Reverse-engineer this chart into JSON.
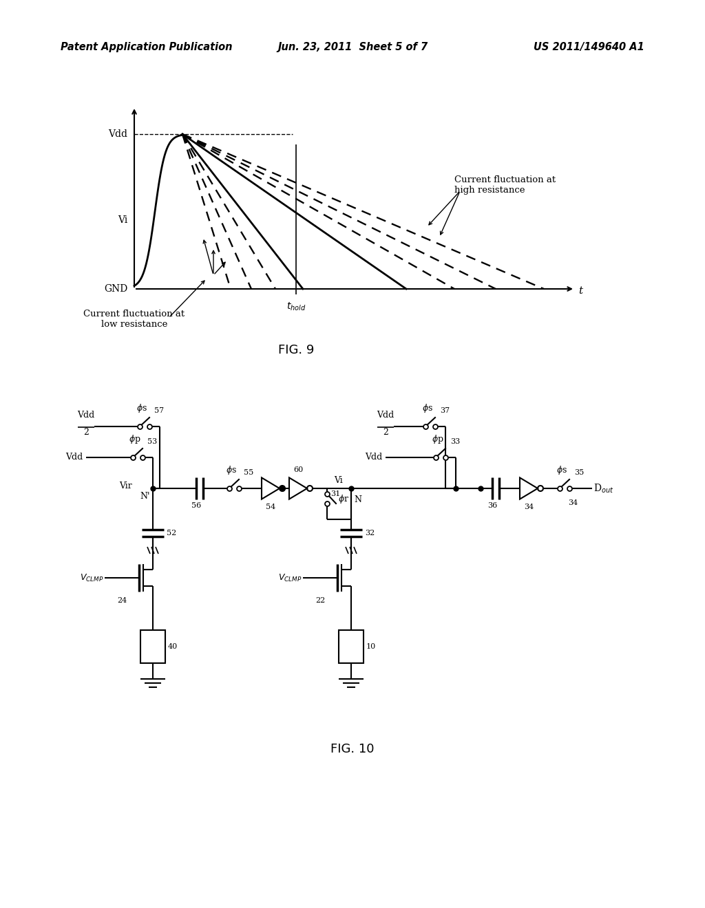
{
  "header_left": "Patent Application Publication",
  "header_center": "Jun. 23, 2011  Sheet 5 of 7",
  "header_right": "US 2011/149640 A1",
  "fig9_title": "FIG. 9",
  "fig10_title": "FIG. 10",
  "background_color": "#ffffff",
  "line_color": "#000000"
}
